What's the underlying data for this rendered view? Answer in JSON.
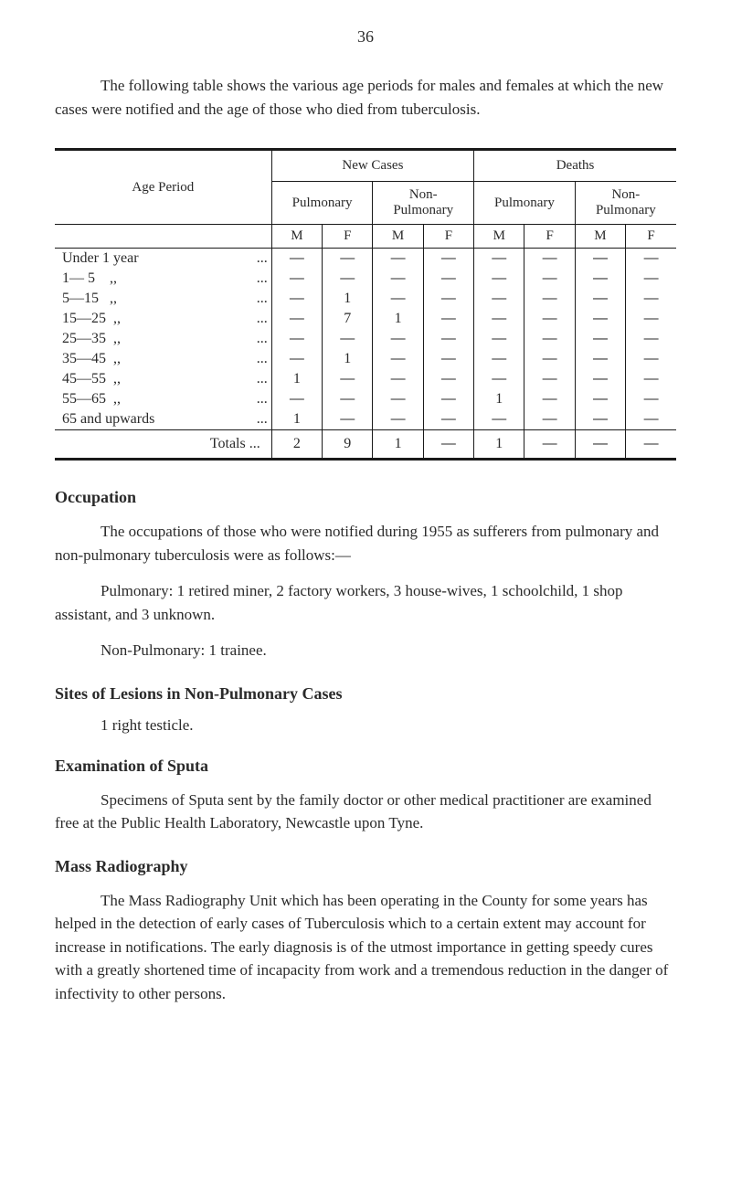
{
  "page_number": "36",
  "intro": "The following table shows the various age periods for males and females at which the new cases were notified and the age of those who died from tuberculosis.",
  "table": {
    "headers": {
      "age_period": "Age Period",
      "new_cases": "New Cases",
      "deaths": "Deaths",
      "pulmonary": "Pulmonary",
      "non_pulmonary": "Non-\nPulmonary",
      "m": "M",
      "f": "F"
    },
    "rows": [
      {
        "label": "Under 1 year",
        "dots": "...",
        "cells": [
          "—",
          "—",
          "—",
          "—",
          "—",
          "—",
          "—",
          "—"
        ]
      },
      {
        "label": "1— 5    ,,",
        "dots": "...",
        "cells": [
          "—",
          "—",
          "—",
          "—",
          "—",
          "—",
          "—",
          "—"
        ]
      },
      {
        "label": "5—15   ,,",
        "dots": "...",
        "cells": [
          "—",
          "1",
          "—",
          "—",
          "—",
          "—",
          "—",
          "—"
        ]
      },
      {
        "label": "15—25  ,,",
        "dots": "...",
        "cells": [
          "—",
          "7",
          "1",
          "—",
          "—",
          "—",
          "—",
          "—"
        ]
      },
      {
        "label": "25—35  ,,",
        "dots": "...",
        "cells": [
          "—",
          "—",
          "—",
          "—",
          "—",
          "—",
          "—",
          "—"
        ]
      },
      {
        "label": "35—45  ,,",
        "dots": "...",
        "cells": [
          "—",
          "1",
          "—",
          "—",
          "—",
          "—",
          "—",
          "—"
        ]
      },
      {
        "label": "45—55  ,,",
        "dots": "...",
        "cells": [
          "1",
          "—",
          "—",
          "—",
          "—",
          "—",
          "—",
          "—"
        ]
      },
      {
        "label": "55—65  ,,",
        "dots": "...",
        "cells": [
          "—",
          "—",
          "—",
          "—",
          "1",
          "—",
          "—",
          "—"
        ]
      },
      {
        "label": "65 and upwards",
        "dots": "...",
        "cells": [
          "1",
          "—",
          "—",
          "—",
          "—",
          "—",
          "—",
          "—"
        ]
      }
    ],
    "totals": {
      "label": "Totals  ...",
      "cells": [
        "2",
        "9",
        "1",
        "—",
        "1",
        "—",
        "—",
        "—"
      ]
    }
  },
  "sections": {
    "occupation": {
      "heading": "Occupation",
      "para1": "The occupations of those who were notified during 1955 as sufferers from pulmonary and non-pulmonary tuberculosis were as follows:—",
      "para2": "Pulmonary: 1 retired miner, 2 factory workers, 3 house-wives, 1 schoolchild, 1 shop assistant, and 3 unknown.",
      "para3": "Non-Pulmonary: 1 trainee."
    },
    "sites": {
      "heading": "Sites of Lesions in Non-Pulmonary Cases",
      "para1": "1 right testicle."
    },
    "sputa": {
      "heading": "Examination of Sputa",
      "para1": "Specimens of Sputa sent by the family doctor or other medical practitioner are examined free at the Public Health Laboratory, Newcastle upon Tyne."
    },
    "radiography": {
      "heading": "Mass Radiography",
      "para1": "The Mass Radiography Unit which has been operating in the County for some years has helped in the detection of early cases of Tuberculosis which to a certain extent may account for increase in notifications. The early diagnosis is of the utmost importance in getting speedy cures with a greatly shortened time of incapacity from work and a tremendous reduction in the danger of infectivity to other persons."
    }
  }
}
